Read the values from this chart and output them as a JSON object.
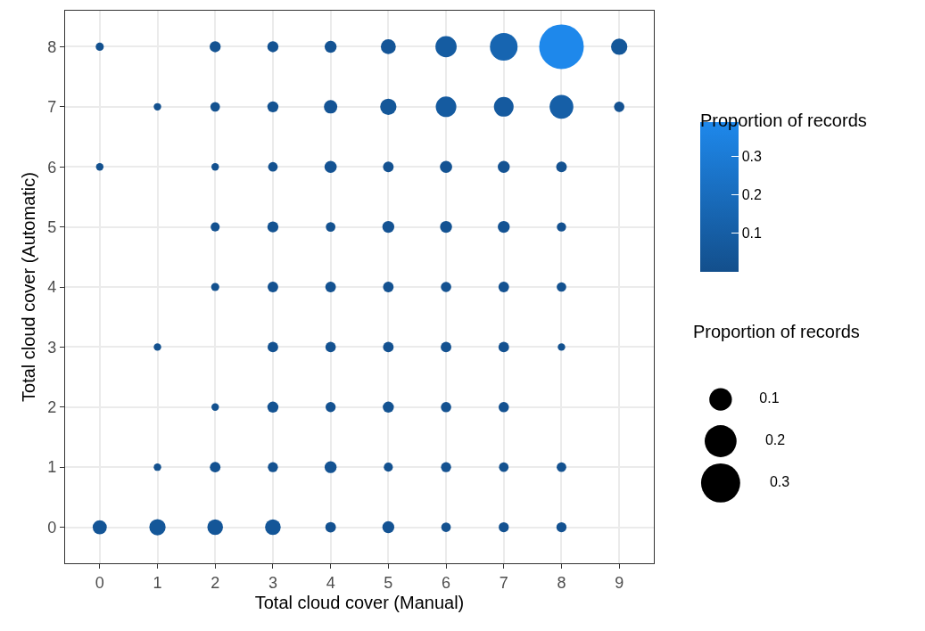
{
  "chart_data": {
    "type": "bubble",
    "xlabel": "Total cloud cover (Manual)",
    "ylabel": "Total cloud cover (Automatic)",
    "clabel": "Proportion of records",
    "legend_title": "Proportion of records",
    "x": [
      0,
      2,
      3,
      4,
      5,
      6,
      7,
      8,
      9,
      1,
      2,
      3,
      4,
      5,
      6,
      7,
      8,
      9,
      0,
      2,
      3,
      4,
      5,
      6,
      7,
      8,
      2,
      3,
      4,
      5,
      6,
      7,
      8,
      2,
      3,
      4,
      5,
      6,
      7,
      8,
      1,
      3,
      4,
      5,
      6,
      7,
      8,
      2,
      3,
      4,
      5,
      6,
      7,
      1,
      2,
      3,
      4,
      5,
      6,
      7,
      8,
      0,
      1,
      2,
      3,
      4,
      5,
      6,
      7,
      8
    ],
    "values": [
      8,
      8,
      8,
      8,
      8,
      8,
      8,
      8,
      8,
      7,
      7,
      7,
      7,
      7,
      7,
      7,
      7,
      7,
      6,
      6,
      6,
      6,
      6,
      6,
      6,
      6,
      5,
      5,
      5,
      5,
      5,
      5,
      5,
      4,
      4,
      4,
      4,
      4,
      4,
      4,
      3,
      3,
      3,
      3,
      3,
      3,
      3,
      2,
      2,
      2,
      2,
      2,
      2,
      1,
      1,
      1,
      1,
      1,
      1,
      1,
      1,
      0,
      0,
      0,
      0,
      0,
      0,
      0,
      0,
      0
    ],
    "sizes": [
      0.013,
      0.024,
      0.024,
      0.028,
      0.044,
      0.088,
      0.15,
      0.39,
      0.052,
      0.011,
      0.018,
      0.024,
      0.035,
      0.052,
      0.083,
      0.076,
      0.111,
      0.021,
      0.011,
      0.011,
      0.018,
      0.029,
      0.022,
      0.029,
      0.028,
      0.022,
      0.016,
      0.024,
      0.018,
      0.028,
      0.028,
      0.028,
      0.017,
      0.013,
      0.022,
      0.022,
      0.022,
      0.021,
      0.022,
      0.018,
      0.011,
      0.022,
      0.021,
      0.022,
      0.022,
      0.022,
      0.011,
      0.011,
      0.024,
      0.02,
      0.024,
      0.021,
      0.021,
      0.011,
      0.022,
      0.02,
      0.028,
      0.016,
      0.02,
      0.018,
      0.018,
      0.039,
      0.052,
      0.048,
      0.048,
      0.022,
      0.028,
      0.018,
      0.02,
      0.02
    ],
    "cvalues": [
      0.013,
      0.024,
      0.024,
      0.028,
      0.044,
      0.088,
      0.15,
      0.39,
      0.052,
      0.011,
      0.018,
      0.024,
      0.035,
      0.052,
      0.083,
      0.076,
      0.111,
      0.021,
      0.011,
      0.011,
      0.018,
      0.029,
      0.022,
      0.029,
      0.028,
      0.022,
      0.016,
      0.024,
      0.018,
      0.028,
      0.028,
      0.028,
      0.017,
      0.013,
      0.022,
      0.022,
      0.022,
      0.021,
      0.022,
      0.018,
      0.011,
      0.022,
      0.021,
      0.022,
      0.022,
      0.022,
      0.011,
      0.011,
      0.024,
      0.02,
      0.024,
      0.021,
      0.021,
      0.011,
      0.022,
      0.02,
      0.028,
      0.016,
      0.02,
      0.018,
      0.018,
      0.039,
      0.052,
      0.048,
      0.048,
      0.022,
      0.028,
      0.018,
      0.02,
      0.02
    ],
    "size_legend": [
      0.1,
      0.2,
      0.3
    ],
    "clim": [
      0,
      0.39
    ],
    "cticks": [
      0.1,
      0.2,
      0.3
    ],
    "xlim": [
      -0.6,
      9.6
    ],
    "ylim": [
      -0.6,
      8.6
    ],
    "xticks": [
      0,
      1,
      2,
      3,
      4,
      5,
      6,
      7,
      8,
      9
    ],
    "yticks": [
      0,
      1,
      2,
      3,
      4,
      5,
      6,
      7,
      8
    ],
    "grid": true,
    "marker": "circle"
  }
}
